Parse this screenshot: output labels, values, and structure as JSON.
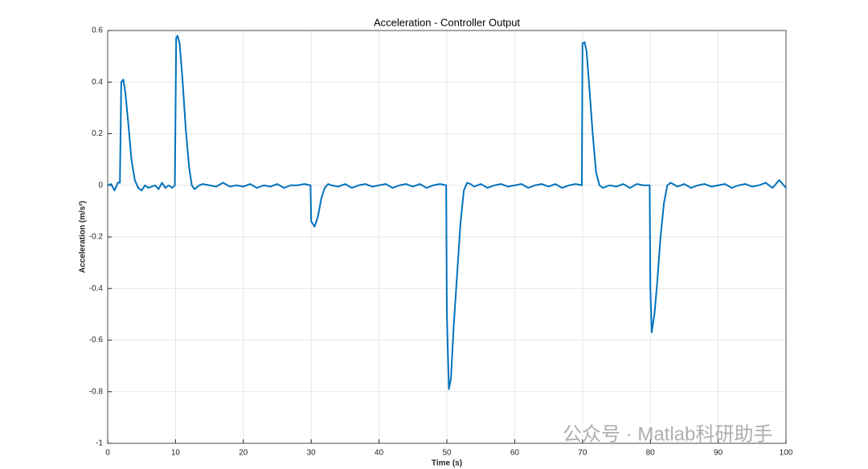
{
  "chart_data": {
    "type": "line",
    "title": "Acceleration - Controller Output",
    "xlabel": "Time (s)",
    "ylabel": "Acceleration (m/s²)",
    "watermark": "公众号 · Matlab科研助手",
    "xlim": [
      0,
      100
    ],
    "xticks": [
      0,
      10,
      20,
      30,
      40,
      50,
      60,
      70,
      80,
      90,
      100
    ],
    "ylim": [
      -1,
      0.6
    ],
    "yticks": [
      -1,
      -0.8,
      -0.6,
      -0.4,
      -0.2,
      0,
      0.2,
      0.4,
      0.6
    ],
    "grid": true,
    "series": [
      {
        "color": "#0072bd",
        "x": [
          0,
          0.5,
          1,
          1.5,
          1.8,
          2.0,
          2.3,
          2.6,
          3,
          3.5,
          4,
          4.5,
          5,
          5.5,
          6,
          6.5,
          7,
          7.5,
          8,
          8.5,
          9,
          9.5,
          9.9,
          10.1,
          10.3,
          10.6,
          11,
          11.5,
          12,
          12.4,
          12.8,
          13.5,
          14,
          15,
          16,
          17,
          18,
          19,
          20,
          21,
          22,
          23,
          24,
          25,
          26,
          27,
          28,
          29,
          29.9,
          30.0,
          30.5,
          31,
          31.5,
          32,
          32.5,
          33,
          34,
          35,
          36,
          37,
          38,
          39,
          40,
          41,
          42,
          43,
          44,
          45,
          46,
          47,
          48,
          49,
          49.9,
          50.0,
          50.3,
          50.6,
          51,
          51.5,
          52,
          52.5,
          53,
          53.5,
          54,
          55,
          56,
          57,
          58,
          59,
          60,
          61,
          62,
          63,
          64,
          65,
          66,
          67,
          68,
          69,
          69.9,
          70.0,
          70.3,
          70.6,
          71,
          71.5,
          72,
          72.5,
          73,
          74,
          75,
          76,
          77,
          78,
          79,
          79.9,
          80.0,
          80.2,
          80.6,
          81,
          81.5,
          82,
          82.5,
          83,
          84,
          85,
          86,
          87,
          88,
          89,
          90,
          91,
          92,
          93,
          94,
          95,
          96,
          97,
          98,
          99,
          99.5,
          100
        ],
        "values": [
          0,
          0.005,
          -0.02,
          0.01,
          0.01,
          0.4,
          0.41,
          0.36,
          0.25,
          0.1,
          0.02,
          -0.01,
          -0.02,
          0.0,
          -0.01,
          -0.005,
          0.0,
          -0.015,
          0.01,
          -0.01,
          0.0,
          -0.01,
          0.0,
          0.57,
          0.58,
          0.55,
          0.42,
          0.22,
          0.07,
          0.0,
          -0.015,
          0.0,
          0.005,
          0.0,
          -0.005,
          0.01,
          -0.005,
          0.0,
          -0.005,
          0.005,
          -0.01,
          0.0,
          -0.005,
          0.005,
          -0.01,
          0.0,
          0.0,
          0.005,
          0.0,
          -0.14,
          -0.16,
          -0.12,
          -0.05,
          -0.01,
          0.005,
          0.0,
          -0.005,
          0.005,
          -0.01,
          0.0,
          0.005,
          -0.005,
          0.0,
          0.005,
          -0.01,
          0.0,
          0.005,
          -0.005,
          0.005,
          -0.01,
          0.0,
          0.005,
          0.0,
          -0.5,
          -0.79,
          -0.75,
          -0.55,
          -0.35,
          -0.15,
          -0.02,
          0.01,
          0.005,
          -0.005,
          0.005,
          -0.01,
          0.0,
          0.005,
          -0.005,
          0.0,
          0.005,
          -0.01,
          0.0,
          0.005,
          -0.005,
          0.005,
          -0.01,
          0.0,
          0.005,
          0.0,
          0.55,
          0.555,
          0.52,
          0.38,
          0.2,
          0.05,
          0.0,
          -0.01,
          0.0,
          -0.005,
          0.005,
          -0.01,
          0.005,
          0.0,
          0.0,
          -0.4,
          -0.57,
          -0.5,
          -0.38,
          -0.2,
          -0.07,
          0.0,
          0.01,
          -0.005,
          0.005,
          -0.01,
          0.0,
          0.005,
          -0.005,
          0.0,
          0.005,
          -0.01,
          0.0,
          0.005,
          -0.005,
          0.0,
          0.01,
          -0.01,
          0.02,
          0.005,
          -0.01
        ]
      }
    ]
  }
}
